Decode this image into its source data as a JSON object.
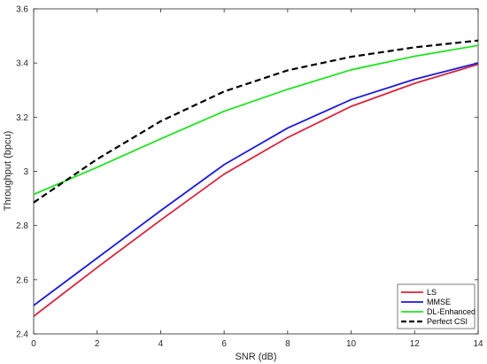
{
  "chart_data": {
    "type": "line",
    "xlabel": "SNR (dB)",
    "ylabel": "Throughput (bpcu)",
    "xlim": [
      0,
      14
    ],
    "ylim": [
      2.4,
      3.6
    ],
    "xticks": [
      0,
      2,
      4,
      6,
      8,
      10,
      12,
      14
    ],
    "yticks": [
      2.4,
      2.6,
      2.8,
      3.0,
      3.2,
      3.4,
      3.6
    ],
    "xtick_labels": [
      "0",
      "2",
      "4",
      "6",
      "8",
      "10",
      "12",
      "14"
    ],
    "ytick_labels": [
      "2.4",
      "2.6",
      "2.8",
      "3",
      "3.2",
      "3.4",
      "3.6"
    ],
    "grid": false,
    "legend_position": "bottom-right",
    "x": [
      0,
      2,
      4,
      6,
      8,
      10,
      12,
      14
    ],
    "series": [
      {
        "name": "LS",
        "color": "#d7263d",
        "style": "solid",
        "values": [
          2.465,
          2.645,
          2.82,
          2.99,
          3.125,
          3.24,
          3.325,
          3.395
        ]
      },
      {
        "name": "MMSE",
        "color": "#1a1adb",
        "style": "solid",
        "values": [
          2.505,
          2.68,
          2.855,
          3.025,
          3.16,
          3.265,
          3.34,
          3.4
        ]
      },
      {
        "name": "DL-Enhanced",
        "color": "#22e322",
        "style": "solid",
        "values": [
          2.915,
          3.015,
          3.12,
          3.222,
          3.303,
          3.375,
          3.425,
          3.465
        ]
      },
      {
        "name": "Perfect CSI",
        "color": "#000000",
        "style": "dashed",
        "values": [
          2.885,
          3.045,
          3.185,
          3.295,
          3.373,
          3.423,
          3.458,
          3.483
        ]
      }
    ]
  }
}
